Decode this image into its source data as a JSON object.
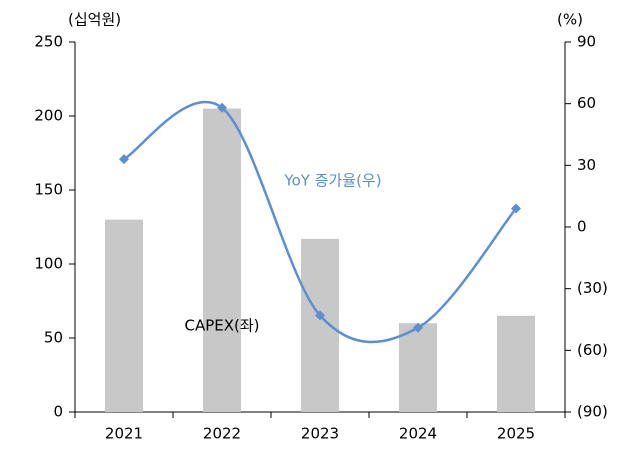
{
  "chart_data": {
    "type": "bar",
    "y_label": "(십억원)",
    "y2_label": "(%)",
    "categories": [
      "2021",
      "2022",
      "2023",
      "2024",
      "2025"
    ],
    "series": [
      {
        "name": "CAPEX(좌)",
        "color": "#c8c8c8",
        "values": [
          130,
          205,
          117,
          60,
          65
        ]
      },
      {
        "name": "YoY 증가율(우)",
        "type": "line",
        "axis": "y2",
        "color": "#5b8fd1",
        "values": [
          33,
          58,
          -43,
          -49,
          9
        ]
      }
    ],
    "ylim": [
      0,
      250
    ],
    "yticks": [
      0,
      50,
      100,
      150,
      200,
      250
    ],
    "y2lim": [
      -90,
      90
    ],
    "y2ticks": [
      {
        "value": -90,
        "label": "(90)"
      },
      {
        "value": -60,
        "label": "(60)"
      },
      {
        "value": -30,
        "label": "(30)"
      },
      0,
      30,
      60,
      90
    ],
    "grid": false
  }
}
